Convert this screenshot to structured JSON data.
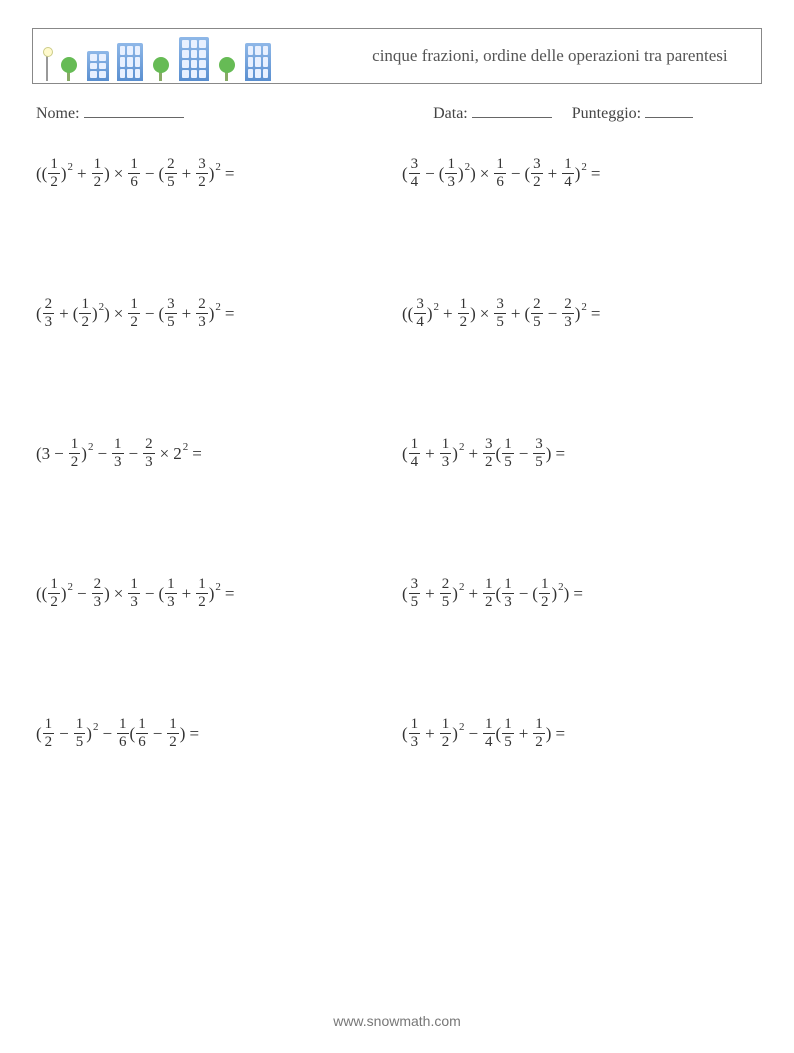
{
  "header": {
    "title": "cinque frazioni, ordine delle operazioni tra parentesi"
  },
  "info": {
    "name_label": "Nome:",
    "date_label": "Data:",
    "score_label": "Punteggio:"
  },
  "symbols": {
    "times": "×",
    "minus": "−",
    "plus": "+",
    "equals": "="
  },
  "problems": [
    {
      "tokens": [
        {
          "t": "("
        },
        {
          "t": "("
        },
        {
          "frac": [
            "1",
            "2"
          ]
        },
        {
          "t": ")"
        },
        {
          "sup": "2"
        },
        {
          "op": "+"
        },
        {
          "frac": [
            "1",
            "2"
          ]
        },
        {
          "t": ")"
        },
        {
          "op": "×"
        },
        {
          "frac": [
            "1",
            "6"
          ]
        },
        {
          "op": "−"
        },
        {
          "t": "("
        },
        {
          "frac": [
            "2",
            "5"
          ]
        },
        {
          "op": "+"
        },
        {
          "frac": [
            "3",
            "2"
          ]
        },
        {
          "t": ")"
        },
        {
          "sup": "2"
        },
        {
          "op": "="
        }
      ]
    },
    {
      "tokens": [
        {
          "t": "("
        },
        {
          "frac": [
            "3",
            "4"
          ]
        },
        {
          "op": "−"
        },
        {
          "t": "("
        },
        {
          "frac": [
            "1",
            "3"
          ]
        },
        {
          "t": ")"
        },
        {
          "sup": "2"
        },
        {
          "t": ")"
        },
        {
          "op": "×"
        },
        {
          "frac": [
            "1",
            "6"
          ]
        },
        {
          "op": "−"
        },
        {
          "t": "("
        },
        {
          "frac": [
            "3",
            "2"
          ]
        },
        {
          "op": "+"
        },
        {
          "frac": [
            "1",
            "4"
          ]
        },
        {
          "t": ")"
        },
        {
          "sup": "2"
        },
        {
          "op": "="
        }
      ]
    },
    {
      "tokens": [
        {
          "t": "("
        },
        {
          "frac": [
            "2",
            "3"
          ]
        },
        {
          "op": "+"
        },
        {
          "t": "("
        },
        {
          "frac": [
            "1",
            "2"
          ]
        },
        {
          "t": ")"
        },
        {
          "sup": "2"
        },
        {
          "t": ")"
        },
        {
          "op": "×"
        },
        {
          "frac": [
            "1",
            "2"
          ]
        },
        {
          "op": "−"
        },
        {
          "t": "("
        },
        {
          "frac": [
            "3",
            "5"
          ]
        },
        {
          "op": "+"
        },
        {
          "frac": [
            "2",
            "3"
          ]
        },
        {
          "t": ")"
        },
        {
          "sup": "2"
        },
        {
          "op": "="
        }
      ]
    },
    {
      "tokens": [
        {
          "t": "("
        },
        {
          "t": "("
        },
        {
          "frac": [
            "3",
            "4"
          ]
        },
        {
          "t": ")"
        },
        {
          "sup": "2"
        },
        {
          "op": "+"
        },
        {
          "frac": [
            "1",
            "2"
          ]
        },
        {
          "t": ")"
        },
        {
          "op": "×"
        },
        {
          "frac": [
            "3",
            "5"
          ]
        },
        {
          "op": "+"
        },
        {
          "t": "("
        },
        {
          "frac": [
            "2",
            "5"
          ]
        },
        {
          "op": "−"
        },
        {
          "frac": [
            "2",
            "3"
          ]
        },
        {
          "t": ")"
        },
        {
          "sup": "2"
        },
        {
          "op": "="
        }
      ]
    },
    {
      "tokens": [
        {
          "t": "(3"
        },
        {
          "op": "−"
        },
        {
          "frac": [
            "1",
            "2"
          ]
        },
        {
          "t": ")"
        },
        {
          "sup": "2"
        },
        {
          "op": "−"
        },
        {
          "frac": [
            "1",
            "3"
          ]
        },
        {
          "op": "−"
        },
        {
          "frac": [
            "2",
            "3"
          ]
        },
        {
          "op": "×"
        },
        {
          "t": "2"
        },
        {
          "sup": "2"
        },
        {
          "op": "="
        }
      ]
    },
    {
      "tokens": [
        {
          "t": "("
        },
        {
          "frac": [
            "1",
            "4"
          ]
        },
        {
          "op": "+"
        },
        {
          "frac": [
            "1",
            "3"
          ]
        },
        {
          "t": ")"
        },
        {
          "sup": "2"
        },
        {
          "op": "+"
        },
        {
          "frac": [
            "3",
            "2"
          ]
        },
        {
          "t": "("
        },
        {
          "frac": [
            "1",
            "5"
          ]
        },
        {
          "op": "−"
        },
        {
          "frac": [
            "3",
            "5"
          ]
        },
        {
          "t": ")"
        },
        {
          "op": "="
        }
      ]
    },
    {
      "tokens": [
        {
          "t": "("
        },
        {
          "t": "("
        },
        {
          "frac": [
            "1",
            "2"
          ]
        },
        {
          "t": ")"
        },
        {
          "sup": "2"
        },
        {
          "op": "−"
        },
        {
          "frac": [
            "2",
            "3"
          ]
        },
        {
          "t": ")"
        },
        {
          "op": "×"
        },
        {
          "frac": [
            "1",
            "3"
          ]
        },
        {
          "op": "−"
        },
        {
          "t": "("
        },
        {
          "frac": [
            "1",
            "3"
          ]
        },
        {
          "op": "+"
        },
        {
          "frac": [
            "1",
            "2"
          ]
        },
        {
          "t": ")"
        },
        {
          "sup": "2"
        },
        {
          "op": "="
        }
      ]
    },
    {
      "tokens": [
        {
          "t": "("
        },
        {
          "frac": [
            "3",
            "5"
          ]
        },
        {
          "op": "+"
        },
        {
          "frac": [
            "2",
            "5"
          ]
        },
        {
          "t": ")"
        },
        {
          "sup": "2"
        },
        {
          "op": "+"
        },
        {
          "frac": [
            "1",
            "2"
          ]
        },
        {
          "t": "("
        },
        {
          "frac": [
            "1",
            "3"
          ]
        },
        {
          "op": "−"
        },
        {
          "t": "("
        },
        {
          "frac": [
            "1",
            "2"
          ]
        },
        {
          "t": ")"
        },
        {
          "sup": "2"
        },
        {
          "t": ")"
        },
        {
          "op": "="
        }
      ]
    },
    {
      "tokens": [
        {
          "t": "("
        },
        {
          "frac": [
            "1",
            "2"
          ]
        },
        {
          "op": "−"
        },
        {
          "frac": [
            "1",
            "5"
          ]
        },
        {
          "t": ")"
        },
        {
          "sup": "2"
        },
        {
          "op": "−"
        },
        {
          "frac": [
            "1",
            "6"
          ]
        },
        {
          "t": "("
        },
        {
          "frac": [
            "1",
            "6"
          ]
        },
        {
          "op": "−"
        },
        {
          "frac": [
            "1",
            "2"
          ]
        },
        {
          "t": ")"
        },
        {
          "op": "="
        }
      ]
    },
    {
      "tokens": [
        {
          "t": "("
        },
        {
          "frac": [
            "1",
            "3"
          ]
        },
        {
          "op": "+"
        },
        {
          "frac": [
            "1",
            "2"
          ]
        },
        {
          "t": ")"
        },
        {
          "sup": "2"
        },
        {
          "op": "−"
        },
        {
          "frac": [
            "1",
            "4"
          ]
        },
        {
          "t": "("
        },
        {
          "frac": [
            "1",
            "5"
          ]
        },
        {
          "op": "+"
        },
        {
          "frac": [
            "1",
            "2"
          ]
        },
        {
          "t": ")"
        },
        {
          "op": "="
        }
      ]
    }
  ],
  "footer": "www.snowmath.com"
}
